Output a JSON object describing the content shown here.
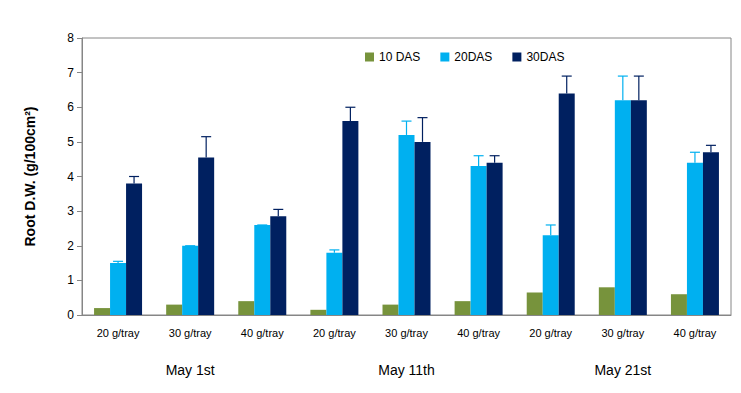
{
  "chart_data": {
    "type": "bar",
    "y_label": "Root D.W. (g/100cm²)",
    "categories": [
      "20 g/tray",
      "30 g/tray",
      "40 g/tray",
      "20 g/tray",
      "30 g/tray",
      "40 g/tray",
      "20 g/tray",
      "30 g/tray",
      "40 g/tray"
    ],
    "group_labels": [
      "May 1st",
      "May 11th",
      "May 21st"
    ],
    "series": [
      {
        "name": "10 DAS",
        "color": "#77933c",
        "values": [
          0.2,
          0.3,
          0.4,
          0.15,
          0.3,
          0.4,
          0.65,
          0.8,
          0.6
        ]
      },
      {
        "name": "20DAS",
        "color": "#00b0f0",
        "values": [
          1.5,
          2.0,
          2.6,
          1.8,
          5.2,
          4.3,
          2.3,
          6.2,
          4.4
        ],
        "errors": [
          0.05,
          0.0,
          0.0,
          0.08,
          0.4,
          0.3,
          0.3,
          0.7,
          0.3
        ]
      },
      {
        "name": "30DAS",
        "color": "#002060",
        "values": [
          3.8,
          4.55,
          2.85,
          5.6,
          5.0,
          4.4,
          6.4,
          6.2,
          4.7
        ],
        "errors": [
          0.2,
          0.6,
          0.2,
          0.4,
          0.7,
          0.2,
          0.5,
          0.7,
          0.2
        ]
      }
    ],
    "ylim": [
      0,
      8
    ],
    "yticks": [
      0,
      1,
      2,
      3,
      4,
      5,
      6,
      7,
      8
    ],
    "grid": false,
    "legend": "top"
  }
}
